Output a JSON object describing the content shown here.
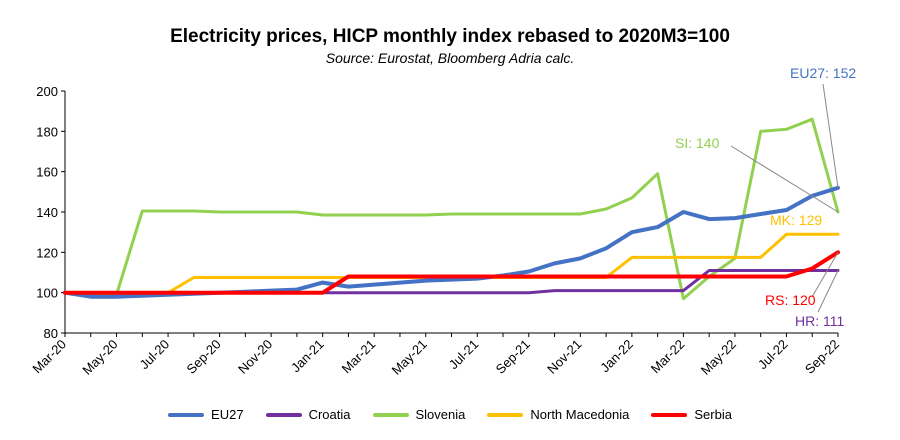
{
  "chart_data": {
    "type": "line",
    "title": "Electricity prices, HICP monthly index rebased to 2020M3=100",
    "subtitle": "Source: Eurostat, Bloomberg Adria calc.",
    "xlabel": "",
    "ylabel": "",
    "ylim": [
      80,
      200
    ],
    "yticks": [
      80,
      100,
      120,
      140,
      160,
      180,
      200
    ],
    "grid": false,
    "legend_position": "bottom",
    "categories": [
      "Mar-20",
      "Apr-20",
      "May-20",
      "Jun-20",
      "Jul-20",
      "Aug-20",
      "Sep-20",
      "Oct-20",
      "Nov-20",
      "Dec-20",
      "Jan-21",
      "Feb-21",
      "Mar-21",
      "Apr-21",
      "May-21",
      "Jun-21",
      "Jul-21",
      "Aug-21",
      "Sep-21",
      "Oct-21",
      "Nov-21",
      "Dec-21",
      "Jan-22",
      "Feb-22",
      "Mar-22",
      "Apr-22",
      "May-22",
      "Jun-22",
      "Jul-22",
      "Aug-22",
      "Sep-22"
    ],
    "tick_labels": [
      "Mar-20",
      "May-20",
      "Jul-20",
      "Sep-20",
      "Nov-20",
      "Jan-21",
      "Mar-21",
      "May-21",
      "Jul-21",
      "Sep-21",
      "Nov-21",
      "Jan-22",
      "Mar-22",
      "May-22",
      "Jul-22",
      "Sep-22"
    ],
    "series": [
      {
        "name": "EU27",
        "color": "#4472C4",
        "values": [
          100,
          98,
          98,
          98.5,
          99,
          99.5,
          100,
          100.5,
          101,
          101.5,
          105,
          103,
          104,
          105,
          106,
          106.5,
          107,
          108.5,
          110.5,
          114.5,
          117,
          122,
          130,
          132.5,
          140,
          136.5,
          137,
          139,
          141,
          148,
          152
        ]
      },
      {
        "name": "Croatia",
        "color": "#7030A0",
        "values": [
          100,
          100,
          100,
          100,
          100,
          100,
          100,
          100,
          100,
          100,
          100,
          100,
          100,
          100,
          100,
          100,
          100,
          100,
          100,
          101,
          101,
          101,
          101,
          101,
          101,
          111,
          111,
          111,
          111,
          111,
          111
        ]
      },
      {
        "name": "Slovenia",
        "color": "#92D050",
        "values": [
          100,
          99,
          99,
          140.5,
          140.5,
          140.5,
          140,
          140,
          140,
          140,
          138.5,
          138.5,
          138.5,
          138.5,
          138.5,
          139,
          139,
          139,
          139,
          139,
          139,
          141.5,
          147,
          159,
          97,
          108,
          117,
          180,
          181,
          186,
          140
        ]
      },
      {
        "name": "North Macedonia",
        "color": "#FFC000",
        "values": [
          100,
          100,
          100,
          100,
          100,
          107.5,
          107.5,
          107.5,
          107.5,
          107.5,
          107.5,
          107.5,
          107.5,
          107.5,
          107.5,
          107.5,
          107.5,
          107.5,
          107.5,
          107.5,
          107.5,
          107.5,
          117.5,
          117.5,
          117.5,
          117.5,
          117.5,
          117.5,
          129,
          129,
          129
        ]
      },
      {
        "name": "Serbia",
        "color": "#FF0000",
        "values": [
          100,
          100,
          100,
          100,
          100,
          100,
          100,
          100,
          100,
          100,
          100,
          108,
          108,
          108,
          108,
          108,
          108,
          108,
          108,
          108,
          108,
          108,
          108,
          108,
          108,
          108,
          108,
          108,
          108,
          112,
          120
        ]
      }
    ],
    "annotations": [
      {
        "text": "EU27: 152",
        "color": "#4472C4",
        "series": "EU27"
      },
      {
        "text": "SI: 140",
        "color": "#92D050",
        "series": "Slovenia"
      },
      {
        "text": "MK: 129",
        "color": "#FFC000",
        "series": "North Macedonia"
      },
      {
        "text": "RS: 120",
        "color": "#FF0000",
        "series": "Serbia"
      },
      {
        "text": "HR: 111",
        "color": "#7030A0",
        "series": "Croatia"
      }
    ]
  }
}
